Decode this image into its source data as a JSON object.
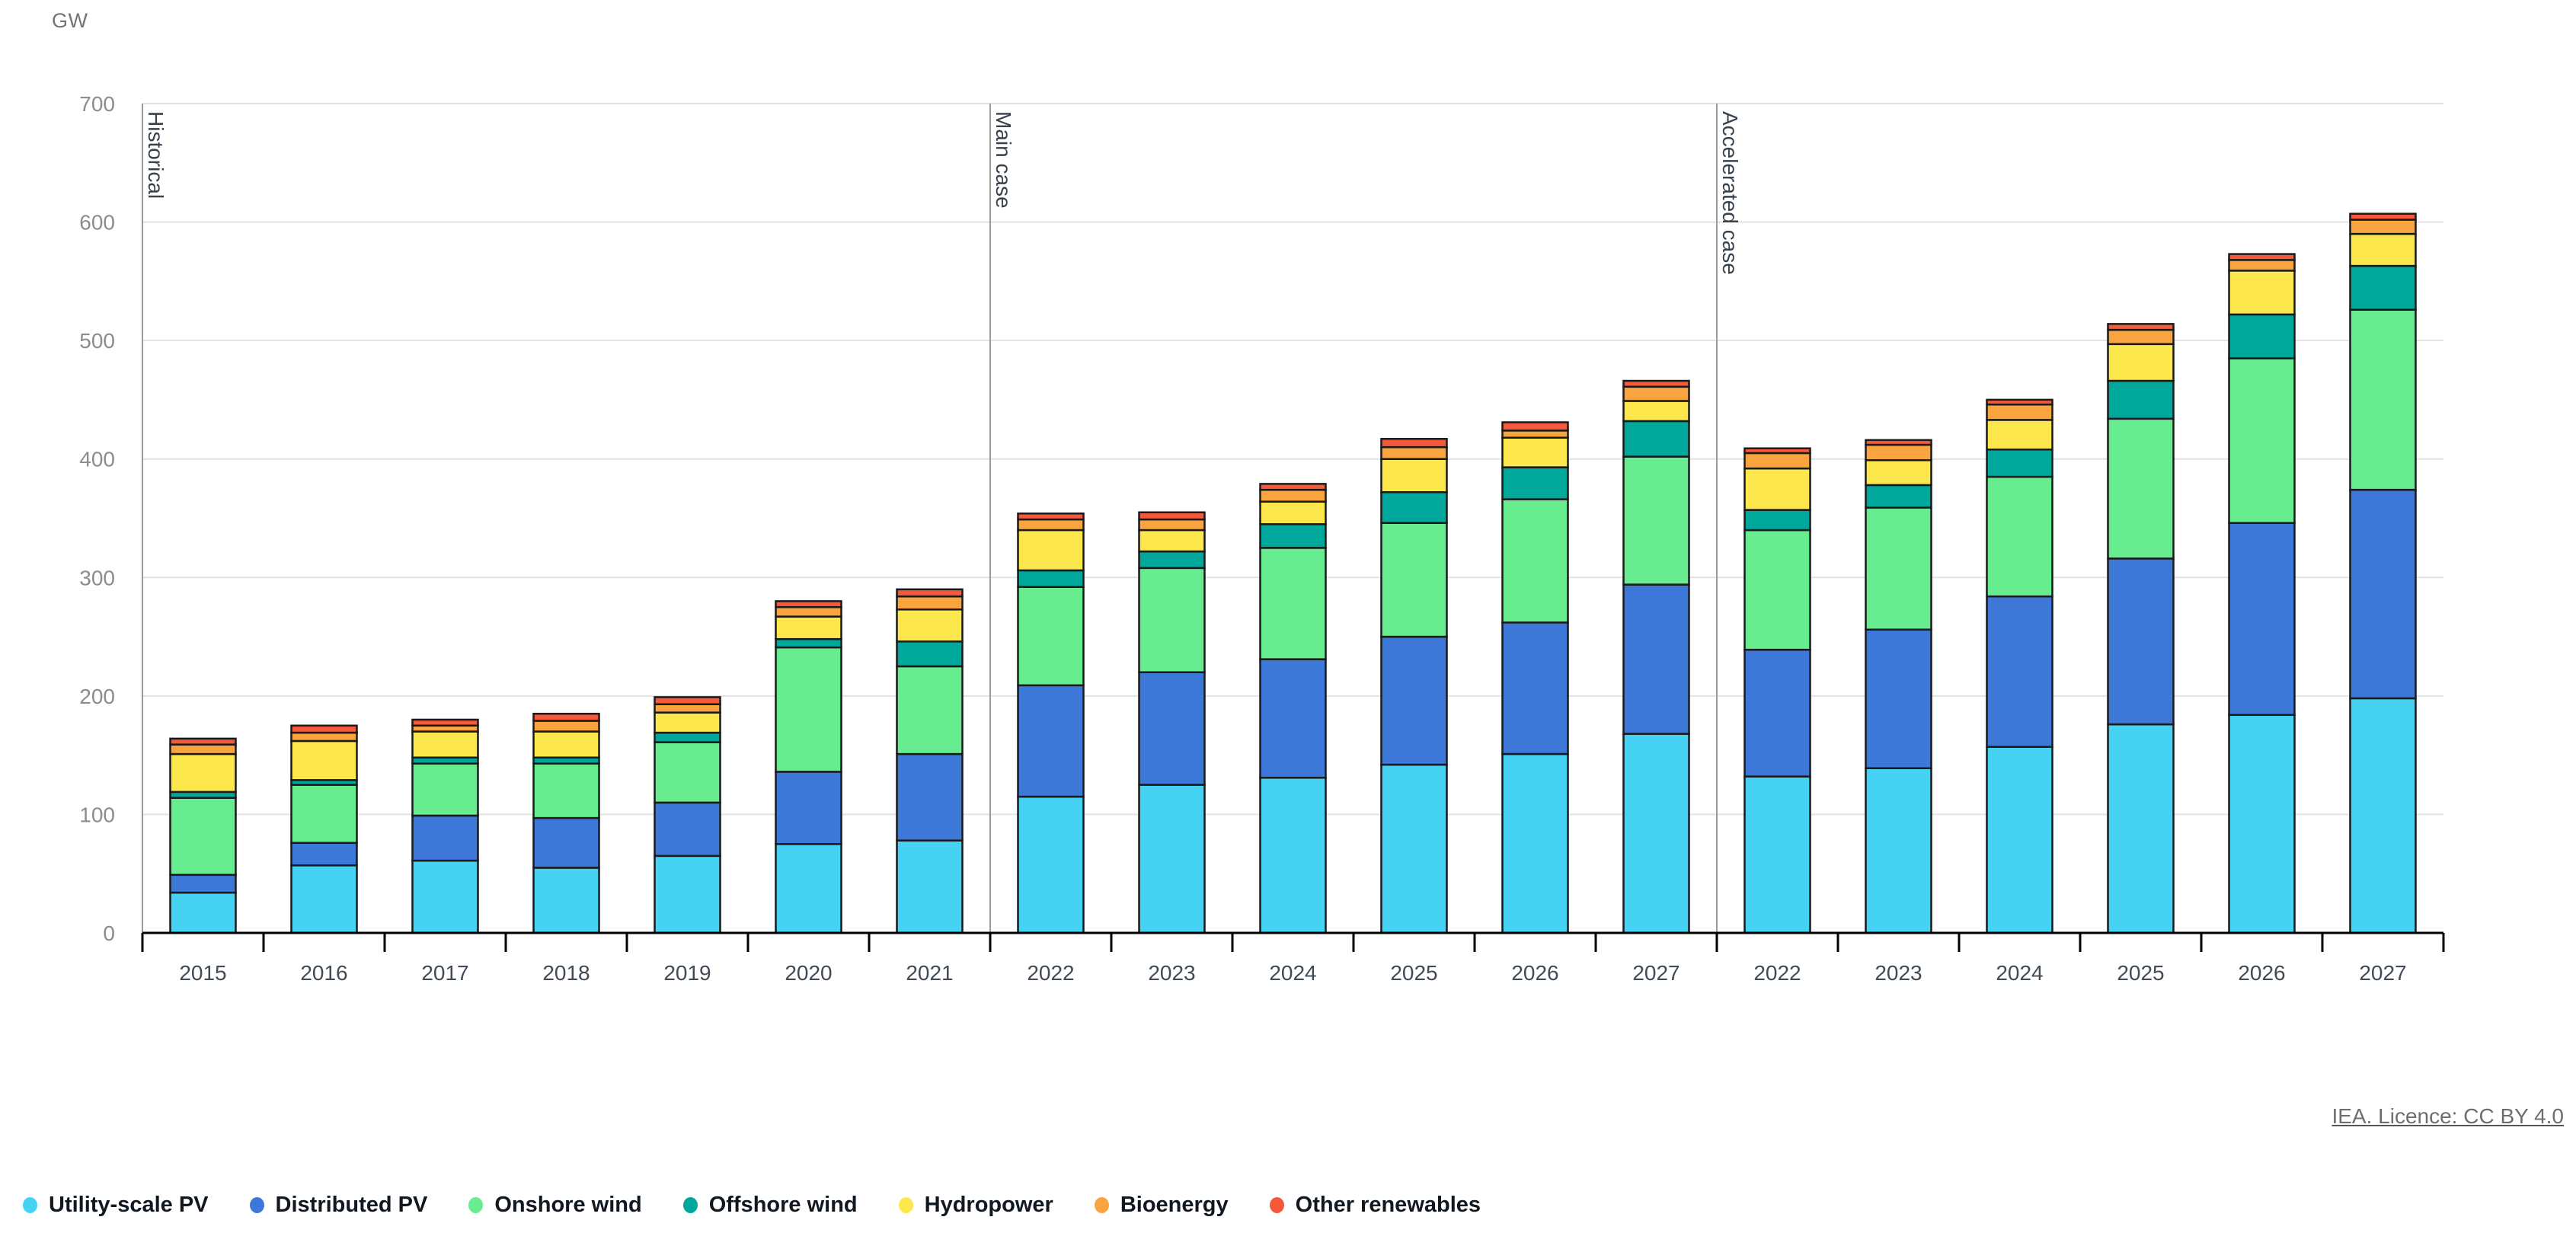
{
  "page": {
    "unit_label": "GW",
    "attribution": "IEA. Licence: CC BY 4.0"
  },
  "chart_data": {
    "type": "bar",
    "stacked": true,
    "unit": "GW",
    "ylabel": "GW",
    "ylim": [
      0,
      700
    ],
    "yticks": [
      0,
      100,
      200,
      300,
      400,
      500,
      600,
      700
    ],
    "grid": true,
    "legend_position": "bottom",
    "sections": [
      {
        "label": "Historical",
        "categories": [
          "2015",
          "2016",
          "2017",
          "2018",
          "2019",
          "2020",
          "2021"
        ]
      },
      {
        "label": "Main case",
        "categories": [
          "2022",
          "2023",
          "2024",
          "2025",
          "2026",
          "2027"
        ]
      },
      {
        "label": "Accelerated case",
        "categories": [
          "2022",
          "2023",
          "2024",
          "2025",
          "2026",
          "2027"
        ]
      }
    ],
    "series": [
      {
        "name": "Utility-scale PV",
        "color": "#45D2F3",
        "values": [
          [
            34,
            57,
            61,
            55,
            65,
            75,
            78
          ],
          [
            115,
            125,
            131,
            142,
            151,
            168
          ],
          [
            132,
            139,
            157,
            176,
            184,
            198
          ]
        ]
      },
      {
        "name": "Distributed PV",
        "color": "#3D78D8",
        "values": [
          [
            15,
            19,
            38,
            42,
            45,
            61,
            73
          ],
          [
            94,
            95,
            100,
            108,
            111,
            126
          ],
          [
            107,
            117,
            127,
            140,
            162,
            176
          ]
        ]
      },
      {
        "name": "Onshore wind",
        "color": "#67EC8F",
        "values": [
          [
            65,
            49,
            44,
            46,
            51,
            105,
            74
          ],
          [
            83,
            88,
            94,
            96,
            104,
            108
          ],
          [
            101,
            103,
            101,
            118,
            139,
            152
          ]
        ]
      },
      {
        "name": "Offshore wind",
        "color": "#00A79B",
        "values": [
          [
            5,
            4,
            5,
            5,
            8,
            7,
            21
          ],
          [
            14,
            14,
            20,
            26,
            27,
            30
          ],
          [
            17,
            19,
            23,
            32,
            37,
            37
          ]
        ]
      },
      {
        "name": "Hydropower",
        "color": "#FCE84D",
        "values": [
          [
            32,
            33,
            22,
            22,
            17,
            19,
            27
          ],
          [
            34,
            18,
            19,
            28,
            25,
            17
          ],
          [
            35,
            21,
            25,
            31,
            37,
            27
          ]
        ]
      },
      {
        "name": "Bioenergy",
        "color": "#F9A43F",
        "values": [
          [
            8,
            7,
            5,
            9,
            7,
            8,
            11
          ],
          [
            9,
            9,
            10,
            10,
            6,
            12
          ],
          [
            13,
            13,
            13,
            12,
            9,
            12
          ]
        ]
      },
      {
        "name": "Other renewables",
        "color": "#F4593B",
        "values": [
          [
            5,
            6,
            5,
            6,
            6,
            5,
            6
          ],
          [
            5,
            6,
            5,
            7,
            7,
            5
          ],
          [
            4,
            4,
            4,
            5,
            5,
            5
          ]
        ]
      }
    ],
    "colors": {
      "grid": "#E2E2E2",
      "axis": "#9B9B9B",
      "zero_line": "#000000",
      "bar_border": "#1A1A1A",
      "ytick_text": "#8C8C8C",
      "year_text": "#414B55",
      "section_text": "#37424C"
    }
  }
}
